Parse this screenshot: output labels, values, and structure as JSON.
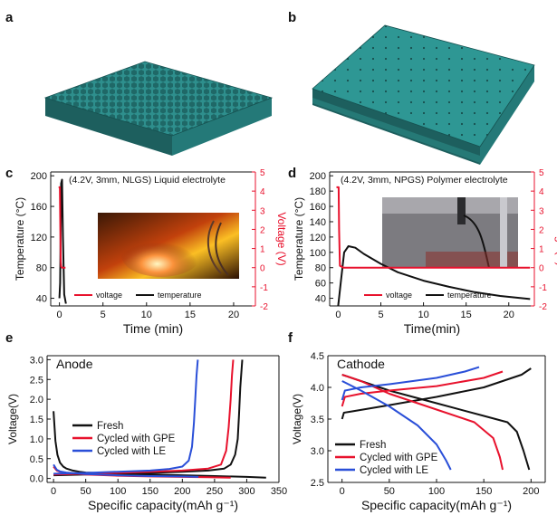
{
  "panel_labels": {
    "a": "a",
    "b": "b",
    "c": "c",
    "d": "d",
    "e": "e",
    "f": "f"
  },
  "colors": {
    "teal": "#2e8f8d",
    "black": "#111111",
    "red": "#e8122d",
    "blue": "#2a4fd8"
  },
  "chart_data": [
    {
      "panel": "c",
      "type": "line",
      "title": "(4.2V, 3mm, NLGS) Liquid electrolyte",
      "xlabel": "Time (min)",
      "ylabel": "Temperature (°C)",
      "y2label": "Voltage (V)",
      "xlim": [
        -1,
        22.5
      ],
      "ylim": [
        30,
        205
      ],
      "y2lim": [
        -2,
        5
      ],
      "xticks": [
        0,
        5,
        10,
        15,
        20
      ],
      "yticks": [
        40,
        80,
        120,
        160,
        200
      ],
      "y2ticks": [
        -2,
        -1,
        0,
        1,
        2,
        3,
        4,
        5
      ],
      "legend": [
        "voltage",
        "temperature"
      ],
      "legend_position": "bottom",
      "inset": "fire photo",
      "series": [
        {
          "name": "temperature",
          "axis": "y",
          "color": "#111111",
          "x": [
            0,
            0.08,
            0.2,
            0.3,
            0.4,
            0.55,
            0.75
          ],
          "y": [
            40,
            60,
            190,
            195,
            120,
            45,
            33
          ]
        },
        {
          "name": "voltage",
          "axis": "y2",
          "color": "#e8122d",
          "x": [
            -0.1,
            0.05,
            0.1,
            0.15,
            0.2,
            0.3,
            0.5,
            0.7
          ],
          "y": [
            4.2,
            4.2,
            2.0,
            0.3,
            0.05,
            0,
            0,
            0
          ]
        }
      ]
    },
    {
      "panel": "d",
      "type": "line",
      "title": "(4.2V, 3mm, NPGS) Polymer electrolyte",
      "xlabel": "Time(min)",
      "ylabel": "Temperature (°C)",
      "y2label": "Voltage (V)",
      "xlim": [
        -1,
        23
      ],
      "ylim": [
        30,
        205
      ],
      "y2lim": [
        -2,
        5
      ],
      "xticks": [
        0,
        5,
        10,
        15,
        20
      ],
      "yticks": [
        40,
        60,
        80,
        100,
        120,
        140,
        160,
        180,
        200
      ],
      "y2ticks": [
        -2,
        -1,
        0,
        1,
        2,
        3,
        4,
        5
      ],
      "legend": [
        "voltage",
        "temperature"
      ],
      "legend_position": "bottom",
      "inset": "test rig photo",
      "series": [
        {
          "name": "temperature",
          "axis": "y",
          "color": "#111111",
          "x": [
            0,
            0.3,
            0.7,
            1.2,
            2,
            3,
            5,
            7,
            10,
            13,
            16,
            19,
            22.5
          ],
          "y": [
            30,
            60,
            100,
            108,
            106,
            98,
            85,
            74,
            63,
            55,
            48,
            43,
            39
          ]
        },
        {
          "name": "voltage",
          "axis": "y2",
          "color": "#e8122d",
          "x": [
            -0.2,
            0.05,
            0.1,
            0.2,
            0.6,
            10,
            22.5
          ],
          "y": [
            4.2,
            4.2,
            2.0,
            0.1,
            0,
            0,
            0
          ]
        }
      ]
    },
    {
      "panel": "e",
      "type": "line",
      "title": "Anode",
      "xlabel": "Specific capacity(mAh g⁻¹)",
      "ylabel": "Voltage(V)",
      "xlim": [
        -10,
        350
      ],
      "ylim": [
        -0.1,
        3.1
      ],
      "xticks": [
        0,
        50,
        100,
        150,
        200,
        250,
        300,
        350
      ],
      "yticks": [
        0.0,
        0.5,
        1.0,
        1.5,
        2.0,
        2.5,
        3.0
      ],
      "legend_position": "middle-left",
      "series": [
        {
          "name": "Fresh",
          "color": "#111111",
          "x": [
            0,
            3,
            6,
            10,
            15,
            20,
            30,
            40,
            50,
            100,
            150,
            200,
            250,
            300,
            330
          ],
          "y": [
            1.7,
            0.95,
            0.6,
            0.4,
            0.3,
            0.25,
            0.2,
            0.17,
            0.15,
            0.12,
            0.1,
            0.08,
            0.06,
            0.04,
            0.02
          ]
        },
        {
          "name": "Fresh",
          "color": "#111111",
          "x": [
            0,
            50,
            100,
            150,
            200,
            240,
            265,
            275,
            282,
            286,
            288,
            290,
            293
          ],
          "y": [
            0.08,
            0.1,
            0.12,
            0.14,
            0.17,
            0.2,
            0.25,
            0.35,
            0.6,
            1.0,
            1.6,
            2.3,
            3.0
          ]
        },
        {
          "name": "Cycled with GPE",
          "color": "#e8122d",
          "x": [
            0,
            5,
            10,
            20,
            50,
            100,
            150,
            200,
            240,
            275
          ],
          "y": [
            0.3,
            0.2,
            0.17,
            0.14,
            0.1,
            0.07,
            0.05,
            0.04,
            0.03,
            0.02
          ]
        },
        {
          "name": "Cycled with GPE",
          "color": "#e8122d",
          "x": [
            0,
            50,
            100,
            150,
            200,
            240,
            260,
            268,
            272,
            275,
            277,
            279
          ],
          "y": [
            0.1,
            0.12,
            0.14,
            0.17,
            0.2,
            0.25,
            0.35,
            0.7,
            1.3,
            2.0,
            2.6,
            3.0
          ]
        },
        {
          "name": "Cycled with LE",
          "color": "#2a4fd8",
          "x": [
            0,
            5,
            10,
            20,
            50,
            100,
            150,
            200,
            225
          ],
          "y": [
            0.35,
            0.22,
            0.18,
            0.15,
            0.11,
            0.08,
            0.06,
            0.05,
            0.04
          ]
        },
        {
          "name": "Cycled with LE",
          "color": "#2a4fd8",
          "x": [
            0,
            50,
            100,
            150,
            180,
            200,
            210,
            215,
            218,
            220,
            222,
            224
          ],
          "y": [
            0.12,
            0.14,
            0.17,
            0.2,
            0.24,
            0.3,
            0.45,
            0.8,
            1.4,
            2.0,
            2.6,
            3.0
          ]
        }
      ]
    },
    {
      "panel": "f",
      "type": "line",
      "title": "Cathode",
      "xlabel": "Specific capacity(mAh g⁻¹)",
      "ylabel": "Voltage(V)",
      "xlim": [
        -15,
        215
      ],
      "ylim": [
        2.5,
        4.5
      ],
      "xticks": [
        0,
        50,
        100,
        150,
        200
      ],
      "yticks": [
        2.5,
        3.0,
        3.5,
        4.0,
        4.5
      ],
      "legend_position": "bottom-left",
      "series": [
        {
          "name": "Fresh",
          "color": "#111111",
          "x": [
            0,
            2,
            10,
            50,
            100,
            150,
            190,
            200
          ],
          "y": [
            3.5,
            3.6,
            3.62,
            3.72,
            3.85,
            4.0,
            4.2,
            4.3
          ]
        },
        {
          "name": "Fresh",
          "color": "#111111",
          "x": [
            0,
            20,
            50,
            100,
            150,
            175,
            185,
            192,
            196,
            198
          ],
          "y": [
            4.2,
            4.1,
            3.95,
            3.75,
            3.55,
            3.45,
            3.3,
            3.0,
            2.8,
            2.7
          ]
        },
        {
          "name": "Cycled with GPE",
          "color": "#e8122d",
          "x": [
            0,
            3,
            20,
            50,
            100,
            150,
            170
          ],
          "y": [
            3.7,
            3.85,
            3.9,
            3.95,
            4.02,
            4.15,
            4.25
          ]
        },
        {
          "name": "Cycled with GPE",
          "color": "#e8122d",
          "x": [
            0,
            20,
            50,
            100,
            140,
            160,
            167,
            170
          ],
          "y": [
            4.2,
            4.1,
            3.9,
            3.65,
            3.45,
            3.2,
            2.9,
            2.7
          ]
        },
        {
          "name": "Cycled with LE",
          "color": "#2a4fd8",
          "x": [
            0,
            3,
            20,
            50,
            100,
            130,
            145
          ],
          "y": [
            3.8,
            3.95,
            4.0,
            4.05,
            4.15,
            4.25,
            4.32
          ]
        },
        {
          "name": "Cycled with LE",
          "color": "#2a4fd8",
          "x": [
            0,
            20,
            50,
            80,
            100,
            110,
            115
          ],
          "y": [
            4.1,
            3.95,
            3.7,
            3.4,
            3.1,
            2.85,
            2.7
          ]
        }
      ]
    }
  ]
}
